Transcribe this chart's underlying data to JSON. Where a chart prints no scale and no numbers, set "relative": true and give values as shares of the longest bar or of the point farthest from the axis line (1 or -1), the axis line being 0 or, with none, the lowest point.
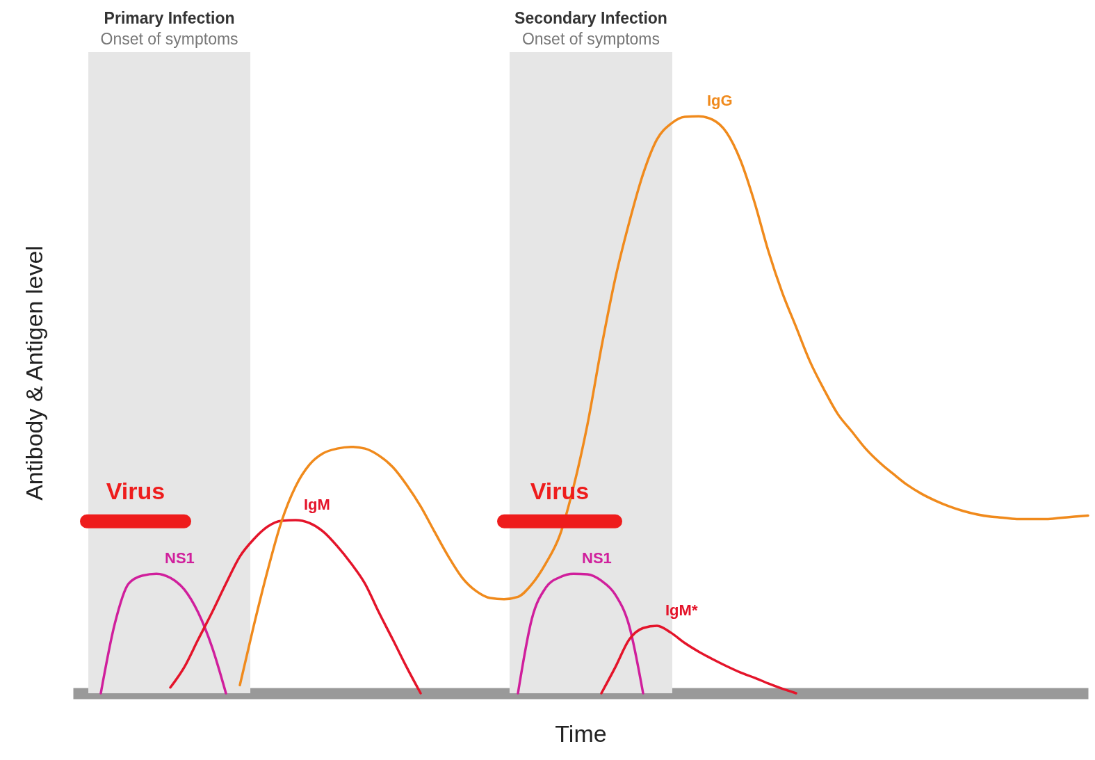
{
  "chart_data": {
    "type": "line",
    "relative": true,
    "xlabel": "Time",
    "ylabel": "Antibody & Antigen level",
    "grid": false,
    "tick_labels": false,
    "categories": [
      null,
      null,
      null,
      null,
      null,
      null,
      null,
      null,
      null,
      null,
      null,
      null,
      null,
      null,
      null,
      null,
      null,
      null,
      null,
      null,
      null,
      null,
      null,
      null,
      null,
      null,
      null,
      null,
      null,
      null,
      null,
      null,
      null,
      null,
      null,
      null,
      null,
      null,
      null,
      null,
      null,
      null,
      null,
      null,
      null,
      null,
      null,
      null,
      null,
      null,
      null,
      null,
      null,
      null,
      null,
      null,
      null,
      null,
      null,
      null,
      null,
      null,
      null,
      null,
      null,
      null,
      null,
      null,
      null,
      null,
      null,
      null,
      null,
      null
    ],
    "annotations": [
      "Primary Infection",
      "Onset of symptoms",
      "Secondary Infection",
      "Onset of symptoms"
    ],
    "series": [
      {
        "name": "NS1",
        "color": "#d01f9c",
        "values": [
          null,
          null,
          0,
          0.12,
          0.19,
          0.204,
          0.207,
          0.2,
          0.18,
          0.14,
          0.08,
          0,
          null,
          null,
          null,
          null,
          null,
          null,
          null,
          null,
          null,
          null,
          null,
          null,
          null,
          null,
          null,
          null,
          null,
          null,
          null,
          null,
          null,
          null,
          null,
          null,
          null,
          null,
          null,
          null,
          null,
          null,
          null,
          null,
          null,
          null,
          null,
          null,
          null,
          null,
          null,
          null,
          null,
          null,
          null,
          null,
          null,
          null,
          null,
          null,
          null,
          null,
          null,
          null,
          null,
          null,
          null,
          null,
          null,
          null,
          null,
          null,
          null,
          null
        ]
      },
      {
        "name": "IgM",
        "color": "#e4142a",
        "values": [
          null,
          null,
          null,
          null,
          null,
          null,
          null,
          0.01,
          0.045,
          0.093,
          0.14,
          0.19,
          0.237,
          0.267,
          0.289,
          0.299,
          0.3,
          0.295,
          0.28,
          0.255,
          0.225,
          0.19,
          0.14,
          0.093,
          0.045,
          0,
          null,
          null,
          null,
          null,
          null,
          null,
          null,
          null,
          null,
          null,
          null,
          null,
          null,
          null,
          null,
          null,
          null,
          null,
          null,
          null,
          null,
          null,
          null,
          null,
          null,
          null,
          null,
          null,
          null,
          null,
          null,
          null,
          null,
          null,
          null,
          null,
          null,
          null,
          null,
          null,
          null,
          null,
          null,
          null,
          null,
          null,
          null,
          null
        ]
      },
      {
        "name": "IgG",
        "color": "#f08a1c",
        "values": [
          null,
          null,
          null,
          null,
          null,
          null,
          null,
          null,
          null,
          null,
          null,
          null,
          0.014,
          0.117,
          0.213,
          0.298,
          0.358,
          0.396,
          0.416,
          0.424,
          0.427,
          0.424,
          0.412,
          0.392,
          0.361,
          0.324,
          0.28,
          0.237,
          0.2,
          0.177,
          0.165,
          0.163,
          0.167,
          0.189,
          0.225,
          0.273,
          0.358,
          0.466,
          0.599,
          0.719,
          0.816,
          0.9,
          0.96,
          0.987,
          0.999,
          1,
          0.994,
          0.972,
          0.924,
          0.852,
          0.767,
          0.695,
          0.635,
          0.575,
          0.527,
          0.484,
          0.454,
          0.424,
          0.4,
          0.38,
          0.361,
          0.346,
          0.334,
          0.324,
          0.316,
          0.31,
          0.306,
          0.304,
          0.302,
          0.302,
          0.302,
          0.304,
          0.306,
          0.308
        ]
      },
      {
        "name": "NS1",
        "color": "#d01f9c",
        "values": [
          null,
          null,
          null,
          null,
          null,
          null,
          null,
          null,
          null,
          null,
          null,
          null,
          null,
          null,
          null,
          null,
          null,
          null,
          null,
          null,
          null,
          null,
          null,
          null,
          null,
          null,
          null,
          null,
          null,
          null,
          null,
          null,
          0,
          0.129,
          0.183,
          0.201,
          0.207,
          0.206,
          0.195,
          0.171,
          0.117,
          0,
          null,
          null,
          null,
          null,
          null,
          null,
          null,
          null,
          null,
          null,
          null,
          null,
          null,
          null,
          null,
          null,
          null,
          null,
          null,
          null,
          null,
          null,
          null,
          null,
          null,
          null,
          null,
          null,
          null,
          null,
          null,
          null
        ]
      },
      {
        "name": "IgM*",
        "color": "#e4142a",
        "values": [
          null,
          null,
          null,
          null,
          null,
          null,
          null,
          null,
          null,
          null,
          null,
          null,
          null,
          null,
          null,
          null,
          null,
          null,
          null,
          null,
          null,
          null,
          null,
          null,
          null,
          null,
          null,
          null,
          null,
          null,
          null,
          null,
          null,
          null,
          null,
          null,
          null,
          null,
          0,
          0.045,
          0.093,
          0.113,
          0.117,
          0.105,
          0.087,
          0.072,
          0.059,
          0.047,
          0.036,
          0.027,
          0.017,
          0.008,
          0,
          null,
          null,
          null,
          null,
          null,
          null,
          null,
          null,
          null,
          null,
          null,
          null,
          null,
          null,
          null,
          null,
          null,
          null,
          null,
          null,
          null
        ]
      },
      {
        "name": "Virus",
        "color": "#ee1c1c",
        "values": [
          null,
          0.298,
          0.298,
          0.298,
          0.298,
          0.298,
          0.298,
          0.298,
          0.298,
          null,
          null,
          null,
          null,
          null,
          null,
          null,
          null,
          null,
          null,
          null,
          null,
          null,
          null,
          null,
          null,
          null,
          null,
          null,
          null,
          null,
          null,
          null,
          null,
          null,
          null,
          null,
          null,
          null,
          null,
          null,
          null,
          null,
          null,
          null,
          null,
          null,
          null,
          null,
          null,
          null,
          null,
          null,
          null,
          null,
          null,
          null,
          null,
          null,
          null,
          null,
          null,
          null,
          null,
          null,
          null,
          null,
          null,
          null,
          null,
          null,
          null,
          null,
          null,
          null
        ]
      },
      {
        "name": "Virus",
        "color": "#ee1c1c",
        "values": [
          null,
          null,
          null,
          null,
          null,
          null,
          null,
          null,
          null,
          null,
          null,
          null,
          null,
          null,
          null,
          null,
          null,
          null,
          null,
          null,
          null,
          null,
          null,
          null,
          null,
          null,
          null,
          null,
          null,
          null,
          null,
          0.298,
          0.298,
          0.298,
          0.298,
          0.298,
          0.298,
          0.298,
          0.298,
          0.298,
          null,
          null,
          null,
          null,
          null,
          null,
          null,
          null,
          null,
          null,
          null,
          null,
          null,
          null,
          null,
          null,
          null,
          null,
          null,
          null,
          null,
          null,
          null,
          null,
          null,
          null,
          null,
          null,
          null,
          null,
          null,
          null,
          null,
          null
        ]
      }
    ]
  }
}
